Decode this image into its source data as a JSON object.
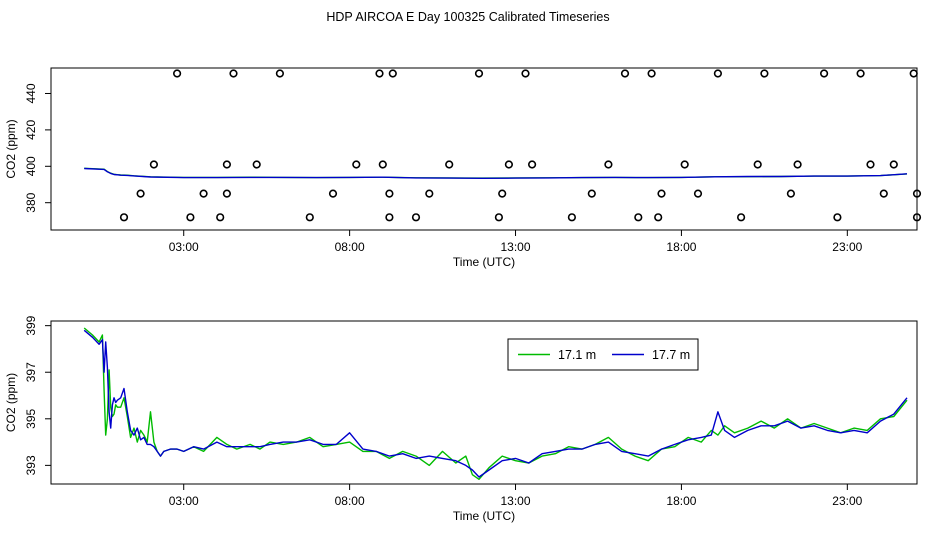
{
  "title": "HDP AIRCOA E  Day 100325  Calibrated Timeseries",
  "colors": {
    "green": "#00bb00",
    "blue": "#0000cc",
    "black": "#000000"
  },
  "chart_data": [
    {
      "type": "scatter",
      "xlabel": "Time (UTC)",
      "ylabel": "CO2 (ppm)",
      "x_ticks": [
        3,
        8,
        13,
        18,
        23
      ],
      "x_tick_labels": [
        "03:00",
        "08:00",
        "13:00",
        "18:00",
        "23:00"
      ],
      "xlim": [
        -1.0,
        25.1
      ],
      "y_ticks": [
        380,
        400,
        420,
        440
      ],
      "ylim": [
        365,
        454
      ],
      "series": [
        {
          "style": "points",
          "color": "#000000",
          "x": [
            1.2,
            1.7,
            2.1,
            2.8,
            3.2,
            3.6,
            4.1,
            4.3,
            4.3,
            4.5,
            5.2,
            5.9,
            6.8,
            7.5,
            8.2,
            8.9,
            9.0,
            9.2,
            9.2,
            9.3,
            10.0,
            10.4,
            11.0,
            11.9,
            12.5,
            12.6,
            12.8,
            13.3,
            13.5,
            14.7,
            15.3,
            15.8,
            16.3,
            16.7,
            17.1,
            17.3,
            17.4,
            18.1,
            18.5,
            19.1,
            19.8,
            20.3,
            20.5,
            21.3,
            21.5,
            22.3,
            22.7,
            23.4,
            23.7,
            24.1,
            24.4,
            25.0,
            25.1,
            25.1
          ],
          "y": [
            372,
            385,
            401,
            451,
            372,
            385,
            372,
            385,
            401,
            451,
            401,
            451,
            372,
            385,
            401,
            451,
            401,
            372,
            385,
            451,
            372,
            385,
            401,
            451,
            372,
            385,
            401,
            451,
            401,
            372,
            385,
            401,
            451,
            372,
            451,
            372,
            385,
            401,
            385,
            451,
            372,
            401,
            451,
            385,
            401,
            451,
            372,
            451,
            401,
            385,
            401,
            451,
            372,
            385
          ]
        },
        {
          "name": "17.1 m",
          "style": "line",
          "color": "#00bb00",
          "x": [
            0.0,
            0.6,
            0.7,
            0.8,
            0.9,
            1.0,
            1.1,
            1.3,
            1.5,
            2.0,
            3.0,
            4.0,
            5.0,
            6.0,
            7.0,
            8.0,
            9.0,
            10.0,
            11.0,
            12.0,
            13.0,
            14.0,
            15.0,
            16.0,
            17.0,
            18.0,
            19.0,
            20.0,
            21.0,
            22.0,
            23.0,
            24.0,
            24.8
          ],
          "y": [
            398.9,
            398.4,
            397.1,
            396.2,
            395.6,
            395.4,
            395.2,
            395.1,
            394.8,
            394.2,
            393.9,
            393.9,
            394.0,
            393.9,
            393.8,
            393.9,
            394.0,
            393.7,
            393.6,
            393.5,
            393.6,
            393.7,
            393.8,
            393.9,
            393.8,
            393.9,
            394.2,
            394.3,
            394.4,
            394.6,
            394.6,
            394.9,
            395.8
          ]
        },
        {
          "name": "17.7 m",
          "style": "line",
          "color": "#0000cc",
          "x": [
            0.0,
            0.6,
            0.7,
            0.8,
            0.9,
            1.0,
            1.1,
            1.3,
            1.5,
            2.0,
            3.0,
            4.0,
            5.0,
            6.0,
            7.0,
            8.0,
            9.0,
            10.0,
            11.0,
            12.0,
            13.0,
            14.0,
            15.0,
            16.0,
            17.0,
            18.0,
            19.0,
            20.0,
            21.0,
            22.0,
            23.0,
            24.0,
            24.8
          ],
          "y": [
            398.8,
            398.3,
            397.0,
            396.1,
            395.5,
            395.3,
            395.1,
            395.0,
            394.7,
            394.1,
            393.8,
            393.8,
            393.9,
            393.9,
            393.8,
            393.9,
            394.0,
            393.6,
            393.5,
            393.4,
            393.5,
            393.6,
            393.8,
            393.9,
            393.8,
            393.9,
            394.2,
            394.4,
            394.4,
            394.6,
            394.6,
            394.9,
            395.9
          ]
        }
      ]
    },
    {
      "type": "line",
      "xlabel": "Time (UTC)",
      "ylabel": "CO2 (ppm)",
      "x_ticks": [
        3,
        8,
        13,
        18,
        23
      ],
      "x_tick_labels": [
        "03:00",
        "08:00",
        "13:00",
        "18:00",
        "23:00"
      ],
      "xlim": [
        -1.0,
        25.1
      ],
      "y_ticks": [
        393,
        395,
        397,
        399
      ],
      "ylim": [
        392.2,
        399.2
      ],
      "legend": "top-center",
      "series": [
        {
          "name": "17.1 m",
          "color": "#00bb00",
          "x": [
            0.0,
            0.25,
            0.45,
            0.55,
            0.6,
            0.65,
            0.7,
            0.75,
            0.8,
            0.85,
            0.9,
            0.95,
            1.0,
            1.1,
            1.2,
            1.3,
            1.4,
            1.5,
            1.6,
            1.7,
            1.8,
            1.9,
            2.0,
            2.1,
            2.2,
            2.3,
            2.4,
            2.6,
            2.8,
            3.0,
            3.3,
            3.6,
            4.0,
            4.3,
            4.6,
            5.0,
            5.3,
            5.6,
            6.0,
            6.4,
            6.8,
            7.2,
            7.6,
            8.0,
            8.4,
            8.8,
            9.2,
            9.6,
            10.0,
            10.4,
            10.8,
            11.2,
            11.5,
            11.7,
            11.9,
            12.2,
            12.6,
            13.0,
            13.4,
            13.8,
            14.2,
            14.6,
            15.0,
            15.4,
            15.8,
            16.2,
            16.6,
            17.0,
            17.4,
            17.8,
            18.2,
            18.6,
            18.9,
            19.1,
            19.3,
            19.6,
            20.0,
            20.4,
            20.8,
            21.2,
            21.6,
            22.0,
            22.4,
            22.8,
            23.2,
            23.6,
            24.0,
            24.4,
            24.8
          ],
          "y": [
            398.9,
            398.6,
            398.3,
            398.6,
            396.2,
            394.3,
            395.0,
            397.1,
            395.5,
            395.1,
            395.2,
            395.6,
            395.5,
            395.5,
            395.9,
            395.1,
            394.2,
            394.6,
            394.0,
            394.5,
            394.3,
            394.0,
            395.3,
            394.0,
            393.6,
            393.4,
            393.6,
            393.7,
            393.7,
            393.6,
            393.8,
            393.6,
            394.2,
            393.9,
            393.7,
            393.9,
            393.7,
            394.0,
            393.9,
            394.0,
            394.2,
            393.8,
            393.9,
            394.0,
            393.6,
            393.6,
            393.3,
            393.6,
            393.4,
            393.0,
            393.6,
            393.1,
            393.4,
            392.6,
            392.4,
            392.9,
            393.4,
            393.2,
            393.1,
            393.4,
            393.5,
            393.8,
            393.7,
            393.9,
            394.2,
            393.7,
            393.4,
            393.2,
            393.7,
            393.8,
            394.2,
            394.0,
            394.5,
            394.3,
            394.7,
            394.4,
            394.6,
            394.9,
            394.6,
            395.0,
            394.6,
            394.8,
            394.6,
            394.4,
            394.6,
            394.5,
            395.0,
            395.1,
            395.8
          ]
        },
        {
          "name": "17.7 m",
          "color": "#0000cc",
          "x": [
            0.0,
            0.25,
            0.45,
            0.55,
            0.6,
            0.65,
            0.7,
            0.75,
            0.8,
            0.85,
            0.9,
            0.95,
            1.0,
            1.1,
            1.2,
            1.3,
            1.4,
            1.5,
            1.6,
            1.7,
            1.8,
            1.9,
            2.0,
            2.1,
            2.2,
            2.3,
            2.4,
            2.6,
            2.8,
            3.0,
            3.3,
            3.6,
            4.0,
            4.3,
            4.6,
            5.0,
            5.3,
            5.6,
            6.0,
            6.4,
            6.8,
            7.2,
            7.6,
            8.0,
            8.4,
            8.8,
            9.2,
            9.6,
            10.0,
            10.4,
            10.8,
            11.2,
            11.5,
            11.7,
            11.9,
            12.2,
            12.6,
            13.0,
            13.4,
            13.8,
            14.2,
            14.6,
            15.0,
            15.4,
            15.8,
            16.2,
            16.6,
            17.0,
            17.4,
            17.8,
            18.2,
            18.6,
            18.9,
            19.1,
            19.3,
            19.6,
            20.0,
            20.4,
            20.8,
            21.2,
            21.6,
            22.0,
            22.4,
            22.8,
            23.2,
            23.6,
            24.0,
            24.4,
            24.8
          ],
          "y": [
            398.8,
            398.5,
            398.2,
            398.4,
            397.0,
            398.3,
            397.2,
            395.3,
            394.6,
            395.6,
            395.9,
            395.7,
            395.8,
            395.9,
            396.3,
            395.3,
            394.5,
            394.3,
            394.6,
            394.1,
            394.2,
            393.9,
            393.9,
            393.8,
            393.6,
            393.4,
            393.6,
            393.7,
            393.7,
            393.6,
            393.8,
            393.7,
            394.0,
            393.8,
            393.8,
            393.8,
            393.8,
            393.9,
            394.0,
            394.0,
            394.1,
            393.9,
            393.9,
            394.4,
            393.7,
            393.6,
            393.4,
            393.5,
            393.3,
            393.4,
            393.3,
            393.2,
            393.0,
            392.8,
            392.5,
            392.8,
            393.2,
            393.3,
            393.1,
            393.5,
            393.6,
            393.7,
            393.7,
            393.9,
            394.0,
            393.6,
            393.5,
            393.4,
            393.7,
            393.9,
            394.1,
            394.2,
            394.3,
            395.3,
            394.5,
            394.2,
            394.5,
            394.7,
            394.7,
            394.9,
            394.6,
            394.7,
            394.5,
            394.4,
            394.5,
            394.4,
            394.9,
            395.2,
            395.9
          ]
        }
      ]
    }
  ]
}
